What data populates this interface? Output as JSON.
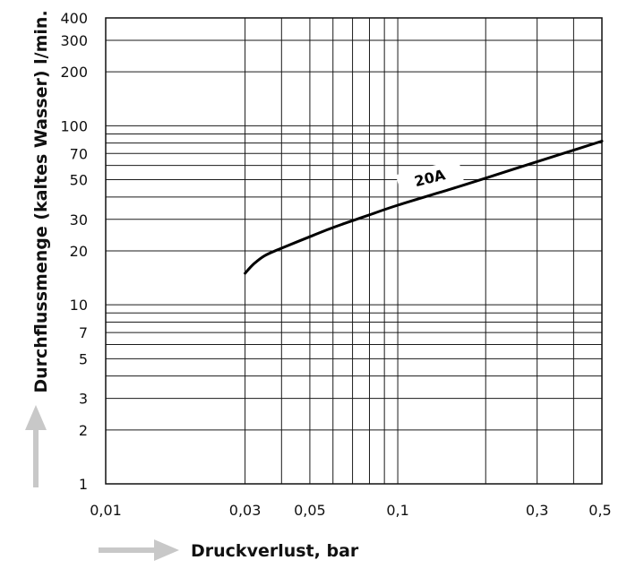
{
  "chart_data": {
    "type": "line",
    "xscale": "log",
    "yscale": "log",
    "xlim": [
      0.01,
      0.5
    ],
    "ylim": [
      1,
      400
    ],
    "grid": true,
    "xlabel": "Druckverlust, bar",
    "ylabel": "Durchflussmenge (kaltes Wasser) l/min.",
    "x_ticks": [
      "0,01",
      "0,03",
      "0,05",
      "0,1",
      "0,3",
      "0,5"
    ],
    "x_tick_values": [
      0.01,
      0.03,
      0.05,
      0.1,
      0.3,
      0.5
    ],
    "y_ticks": [
      "1",
      "2",
      "3",
      "5",
      "7",
      "10",
      "20",
      "30",
      "50",
      "70",
      "100",
      "200",
      "300",
      "400"
    ],
    "y_tick_values": [
      1,
      2,
      3,
      5,
      7,
      10,
      20,
      30,
      50,
      70,
      100,
      200,
      300,
      400
    ],
    "x_grid_values": [
      0.03,
      0.04,
      0.05,
      0.06,
      0.07,
      0.08,
      0.09,
      0.1,
      0.2,
      0.3,
      0.4
    ],
    "y_grid_values": [
      2,
      3,
      4,
      5,
      6,
      7,
      8,
      9,
      10,
      20,
      30,
      40,
      50,
      60,
      70,
      80,
      90,
      100,
      200,
      300
    ],
    "series": [
      {
        "name": "20A",
        "x": [
          0.03,
          0.032,
          0.035,
          0.04,
          0.05,
          0.06,
          0.07,
          0.08,
          0.1,
          0.15,
          0.2,
          0.3,
          0.4,
          0.5
        ],
        "y": [
          15,
          16.8,
          18.8,
          20.7,
          24.0,
          27.0,
          29.5,
          31.8,
          36.0,
          44.0,
          51.0,
          63.0,
          73.0,
          82.0
        ],
        "label_at": [
          0.13,
          48
        ]
      }
    ],
    "arrows": [
      "up-arrow",
      "right-arrow"
    ],
    "colors": {
      "curve": "#000000",
      "grid": "#1a1a1a",
      "arrow": "#c8c8c8"
    }
  }
}
